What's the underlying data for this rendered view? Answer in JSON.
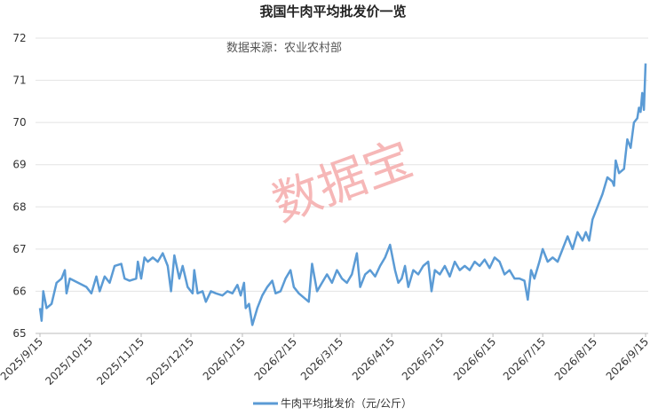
{
  "chart_data": {
    "type": "line",
    "title": "我国牛肉平均批发价一览",
    "subtitle": "数据来源：农业农村部",
    "watermark": "数据宝",
    "x": [
      "2025/9/15",
      "2025/9/16",
      "2025/9/17",
      "2025/9/19",
      "2025/9/22",
      "2025/9/25",
      "2025/9/28",
      "2025/9/30",
      "2025/10/1",
      "2025/10/3",
      "2025/10/8",
      "2025/10/13",
      "2025/10/16",
      "2025/10/19",
      "2025/10/21",
      "2025/10/24",
      "2025/10/27",
      "2025/10/30",
      "2025/11/3",
      "2025/11/5",
      "2025/11/8",
      "2025/11/12",
      "2025/11/13",
      "2025/11/15",
      "2025/11/17",
      "2025/11/19",
      "2025/11/22",
      "2025/11/25",
      "2025/11/28",
      "2025/12/1",
      "2025/12/3",
      "2025/12/5",
      "2025/12/8",
      "2025/12/10",
      "2025/12/13",
      "2025/12/16",
      "2025/12/17",
      "2025/12/19",
      "2025/12/22",
      "2025/12/24",
      "2025/12/27",
      "2025/12/30",
      "2026/1/3",
      "2026/1/6",
      "2026/1/9",
      "2026/1/12",
      "2026/1/14",
      "2026/1/16",
      "2026/1/17",
      "2026/1/19",
      "2026/1/21",
      "2026/1/24",
      "2026/1/27",
      "2026/1/30",
      "2026/2/2",
      "2026/2/4",
      "2026/2/7",
      "2026/2/10",
      "2026/2/13",
      "2026/2/15",
      "2026/2/18",
      "2026/2/21",
      "2026/2/24",
      "2026/2/26",
      "2026/3/1",
      "2026/3/4",
      "2026/3/7",
      "2026/3/10",
      "2026/3/13",
      "2026/3/16",
      "2026/3/19",
      "2026/3/22",
      "2026/3/25",
      "2026/3/27",
      "2026/3/30",
      "2026/4/2",
      "2026/4/5",
      "2026/4/8",
      "2026/4/11",
      "2026/4/14",
      "2026/4/17",
      "2026/4/19",
      "2026/4/21",
      "2026/4/23",
      "2026/4/25",
      "2026/4/28",
      "2026/5/1",
      "2026/5/4",
      "2026/5/7",
      "2026/5/9",
      "2026/5/11",
      "2026/5/14",
      "2026/5/17",
      "2026/5/20",
      "2026/5/23",
      "2026/5/26",
      "2026/5/29",
      "2026/6/1",
      "2026/6/4",
      "2026/6/7",
      "2026/6/10",
      "2026/6/13",
      "2026/6/16",
      "2026/6/19",
      "2026/6/22",
      "2026/6/25",
      "2026/6/28",
      "2026/7/1",
      "2026/7/4",
      "2026/7/6",
      "2026/7/8",
      "2026/7/10",
      "2026/7/13",
      "2026/7/15",
      "2026/7/18",
      "2026/7/21",
      "2026/7/24",
      "2026/7/27",
      "2026/7/30",
      "2026/8/2",
      "2026/8/5",
      "2026/8/8",
      "2026/8/10",
      "2026/8/12",
      "2026/8/14",
      "2026/8/17",
      "2026/8/20",
      "2026/8/23",
      "2026/8/26",
      "2026/8/27",
      "2026/8/28",
      "2026/8/30",
      "2026/9/2",
      "2026/9/4",
      "2026/9/6",
      "2026/9/8",
      "2026/9/10",
      "2026/9/11",
      "2026/9/12",
      "2026/9/13",
      "2026/9/14",
      "2026/9/15"
    ],
    "series": [
      {
        "name": "牛肉平均批发价（元/公斤）",
        "color": "#5b9bd5",
        "values": [
          65.6,
          65.3,
          66.0,
          65.6,
          65.7,
          66.2,
          66.3,
          66.5,
          65.95,
          66.3,
          66.2,
          66.1,
          65.95,
          66.35,
          66.0,
          66.35,
          66.2,
          66.6,
          66.65,
          66.3,
          66.25,
          66.3,
          66.7,
          66.3,
          66.8,
          66.7,
          66.8,
          66.7,
          66.9,
          66.6,
          66.0,
          66.85,
          66.3,
          66.6,
          66.1,
          65.95,
          66.5,
          65.95,
          66.0,
          65.75,
          66.0,
          65.95,
          65.9,
          66.0,
          65.95,
          66.15,
          65.9,
          66.2,
          65.6,
          65.7,
          65.2,
          65.6,
          65.9,
          66.1,
          66.25,
          65.95,
          66.0,
          66.3,
          66.5,
          66.1,
          65.95,
          65.85,
          65.75,
          66.65,
          66.0,
          66.2,
          66.4,
          66.2,
          66.5,
          66.3,
          66.2,
          66.4,
          66.9,
          66.1,
          66.4,
          66.5,
          66.35,
          66.6,
          66.8,
          67.1,
          66.5,
          66.2,
          66.3,
          66.6,
          66.1,
          66.5,
          66.4,
          66.6,
          66.7,
          66.0,
          66.5,
          66.4,
          66.6,
          66.35,
          66.7,
          66.5,
          66.6,
          66.5,
          66.7,
          66.6,
          66.75,
          66.55,
          66.8,
          66.7,
          66.4,
          66.5,
          66.3,
          66.3,
          66.25,
          65.8,
          66.5,
          66.3,
          66.7,
          67.0,
          66.7,
          66.8,
          66.7,
          67.0,
          67.3,
          67.0,
          67.4,
          67.2,
          67.4,
          67.2,
          67.7,
          68.0,
          68.3,
          68.7,
          68.6,
          68.5,
          69.1,
          68.8,
          68.9,
          69.6,
          69.4,
          70.0,
          70.1,
          70.35,
          70.25,
          70.7,
          70.3,
          71.4
        ]
      }
    ],
    "xlim": [
      "2025/9/15",
      "2026/9/15"
    ],
    "xticks": [
      "2025/9/15",
      "2025/10/15",
      "2025/11/15",
      "2025/12/15",
      "2026/1/15",
      "2026/2/15",
      "2026/3/15",
      "2026/4/15",
      "2026/5/15",
      "2026/6/15",
      "2026/7/15",
      "2026/8/15",
      "2026/9/15"
    ],
    "ylim": [
      65,
      72
    ],
    "yticks": [
      65,
      66,
      67,
      68,
      69,
      70,
      71,
      72
    ],
    "grid": true,
    "legend": "bottom"
  }
}
